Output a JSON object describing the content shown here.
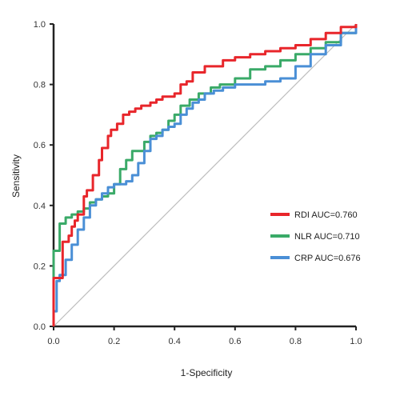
{
  "chart_data": {
    "type": "line",
    "xlabel": "1-Specificity",
    "ylabel": "Sensitivity",
    "xlim": [
      0,
      1
    ],
    "ylim": [
      0,
      1
    ],
    "x_ticks": [
      "0.0",
      "0.2",
      "0.4",
      "0.6",
      "0.8",
      "1.0"
    ],
    "y_ticks": [
      "0.0",
      "0.2",
      "0.4",
      "0.6",
      "0.8",
      "1.0"
    ],
    "grid": false,
    "legend_position": "lower-right",
    "reference_line": {
      "color": "#bdbdbd",
      "x": [
        0,
        1
      ],
      "y": [
        0,
        1
      ]
    },
    "series": [
      {
        "name": "RDI AUC=0.760",
        "color": "#e8262b",
        "x": [
          0.0,
          0.0,
          0.01,
          0.03,
          0.03,
          0.05,
          0.06,
          0.07,
          0.08,
          0.1,
          0.11,
          0.13,
          0.15,
          0.16,
          0.18,
          0.19,
          0.21,
          0.23,
          0.25,
          0.27,
          0.29,
          0.32,
          0.34,
          0.36,
          0.38,
          0.4,
          0.42,
          0.44,
          0.46,
          0.48,
          0.5,
          0.53,
          0.56,
          0.6,
          0.65,
          0.7,
          0.75,
          0.8,
          0.85,
          0.9,
          0.95,
          1.0
        ],
        "y": [
          0.0,
          0.16,
          0.16,
          0.21,
          0.28,
          0.3,
          0.33,
          0.35,
          0.37,
          0.43,
          0.45,
          0.5,
          0.55,
          0.59,
          0.63,
          0.65,
          0.67,
          0.7,
          0.71,
          0.72,
          0.73,
          0.74,
          0.75,
          0.76,
          0.76,
          0.77,
          0.8,
          0.81,
          0.84,
          0.84,
          0.86,
          0.86,
          0.88,
          0.89,
          0.9,
          0.91,
          0.92,
          0.93,
          0.95,
          0.97,
          0.99,
          1.0
        ]
      },
      {
        "name": "NLR AUC=0.710",
        "color": "#3aaa68",
        "x": [
          0.0,
          0.0,
          0.02,
          0.04,
          0.06,
          0.08,
          0.1,
          0.12,
          0.14,
          0.16,
          0.18,
          0.2,
          0.22,
          0.24,
          0.26,
          0.28,
          0.3,
          0.32,
          0.34,
          0.36,
          0.38,
          0.4,
          0.42,
          0.45,
          0.48,
          0.52,
          0.55,
          0.6,
          0.65,
          0.7,
          0.75,
          0.8,
          0.85,
          0.9,
          0.95,
          1.0
        ],
        "y": [
          0.0,
          0.25,
          0.34,
          0.36,
          0.37,
          0.38,
          0.39,
          0.41,
          0.42,
          0.43,
          0.44,
          0.47,
          0.52,
          0.55,
          0.58,
          0.58,
          0.61,
          0.63,
          0.64,
          0.65,
          0.68,
          0.7,
          0.73,
          0.75,
          0.77,
          0.79,
          0.8,
          0.82,
          0.85,
          0.86,
          0.88,
          0.9,
          0.92,
          0.94,
          0.97,
          1.0
        ]
      },
      {
        "name": "CRP AUC=0.676",
        "color": "#4a8fd6",
        "x": [
          0.0,
          0.0,
          0.01,
          0.02,
          0.04,
          0.06,
          0.08,
          0.1,
          0.12,
          0.14,
          0.16,
          0.18,
          0.2,
          0.22,
          0.24,
          0.26,
          0.28,
          0.3,
          0.32,
          0.34,
          0.36,
          0.38,
          0.4,
          0.42,
          0.44,
          0.46,
          0.48,
          0.5,
          0.53,
          0.56,
          0.6,
          0.65,
          0.7,
          0.75,
          0.8,
          0.85,
          0.9,
          0.95,
          1.0
        ],
        "y": [
          0.0,
          0.05,
          0.15,
          0.17,
          0.22,
          0.27,
          0.32,
          0.36,
          0.4,
          0.42,
          0.44,
          0.46,
          0.47,
          0.47,
          0.48,
          0.5,
          0.54,
          0.58,
          0.62,
          0.63,
          0.65,
          0.66,
          0.67,
          0.7,
          0.72,
          0.74,
          0.75,
          0.77,
          0.78,
          0.79,
          0.8,
          0.8,
          0.81,
          0.82,
          0.86,
          0.9,
          0.93,
          0.97,
          1.0
        ]
      }
    ]
  }
}
